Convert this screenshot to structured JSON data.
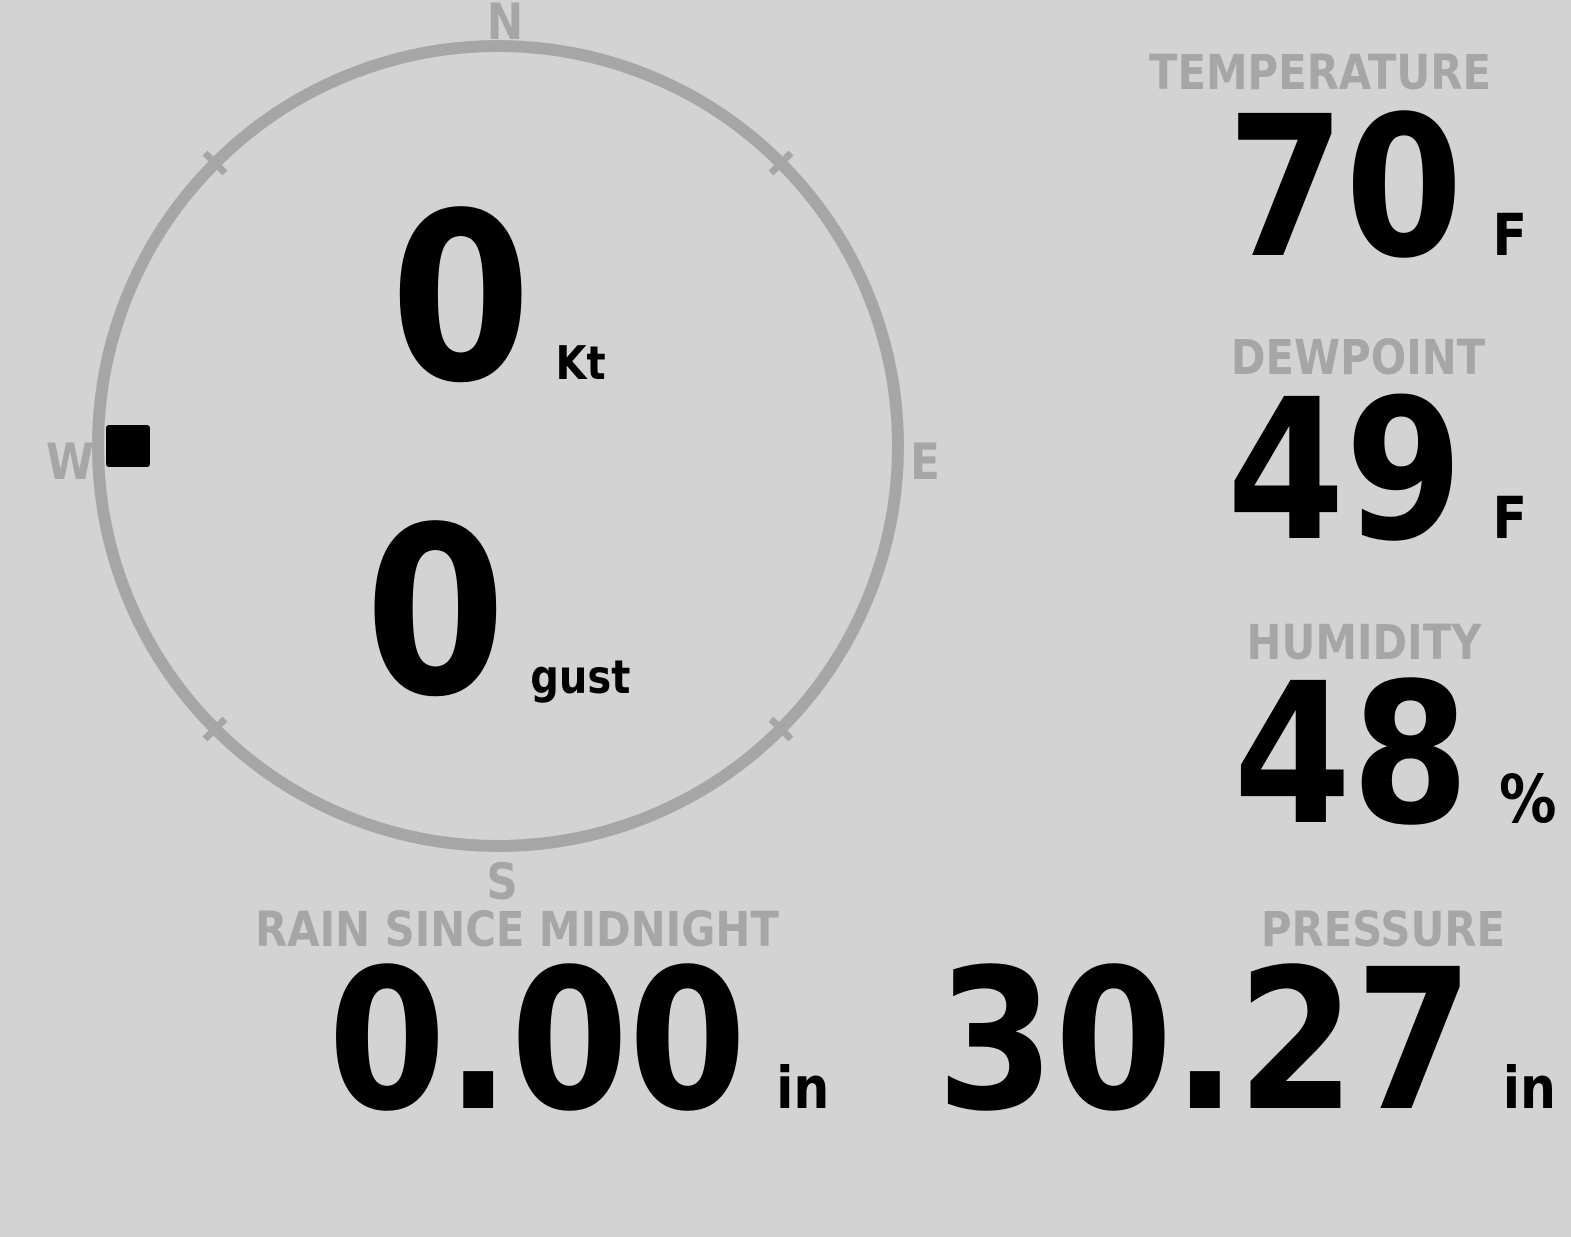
{
  "theme": {
    "background": "#d3d3d3",
    "muted": "#a6a6a6",
    "text": "#000000"
  },
  "compass": {
    "cardinals": {
      "north": "N",
      "east": "E",
      "south": "S",
      "west": "W"
    },
    "wind_direction_deg": 270,
    "speed": {
      "value": "0",
      "unit": "Kt"
    },
    "gust": {
      "value": "0",
      "unit": "gust"
    }
  },
  "metrics": {
    "temperature": {
      "label": "TEMPERATURE",
      "value": "70",
      "unit": "F"
    },
    "dewpoint": {
      "label": "DEWPOINT",
      "value": "49",
      "unit": "F"
    },
    "humidity": {
      "label": "HUMIDITY",
      "value": "48",
      "unit": "%"
    },
    "rain_since_midnight": {
      "label": "RAIN SINCE MIDNIGHT",
      "value": "0.00",
      "unit": "in"
    },
    "pressure": {
      "label": "PRESSURE",
      "value": "30.27",
      "unit": "in"
    }
  }
}
